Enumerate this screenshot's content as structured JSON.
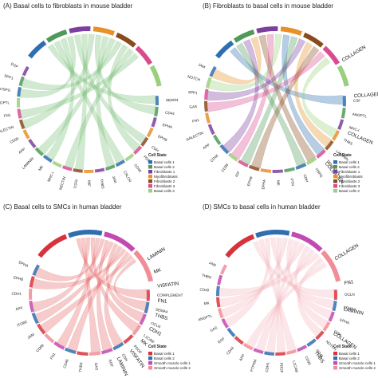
{
  "chart_data": [
    {
      "type": "chord",
      "panel": "(A)",
      "title": "Basal cells to fibroblasts in mouse bladder",
      "sectors": [
        {
          "label": "Basal cells 1",
          "color": "#2f6fb0"
        },
        {
          "label": "Basal cells 2",
          "color": "#4f9a5a"
        },
        {
          "label": "Fibroblasts 1",
          "color": "#7b3fa0"
        },
        {
          "label": "Myofibroblasts",
          "color": "#e8902a"
        },
        {
          "label": "Fibroblasts 2",
          "color": "#8a4a1c"
        },
        {
          "label": "Fibroblasts 3",
          "color": "#d94b8f"
        },
        {
          "label": "Basal cells 3",
          "color": "#9ad07c"
        }
      ],
      "genes": [
        "SEMA4",
        "CD44",
        "EPHA",
        "EPHB",
        "CDH",
        "PDGF",
        "CD46",
        "CALCR",
        "JAM",
        "THBS",
        "MIF",
        "TGFb",
        "NECTIN",
        "MHC-I",
        "MK",
        "LAMININ",
        "APP",
        "CD99",
        "GALECTIN",
        "FN1",
        "ANGPTL",
        "HSPG",
        "SPP1",
        "EGF"
      ],
      "big_labels": [],
      "legend": {
        "title": "Cell State",
        "items": [
          {
            "label": "Basal cells 1",
            "color": "#2f6fb0"
          },
          {
            "label": "Basal cells 2",
            "color": "#4f9a5a"
          },
          {
            "label": "Fibroblasts 1",
            "color": "#7b3fa0"
          },
          {
            "label": "Myofibroblasts",
            "color": "#e8902a"
          },
          {
            "label": "Fibroblasts 2",
            "color": "#8a4a1c"
          },
          {
            "label": "Fibroblasts 3",
            "color": "#d94b8f"
          },
          {
            "label": "Basal cells 3",
            "color": "#9ad07c"
          }
        ]
      },
      "link_color": "#7cc07a"
    },
    {
      "type": "chord",
      "panel": "(B)",
      "title": "Fibroblasts to basal cells in mouse bladder",
      "sectors": [
        {
          "label": "Basal cells 1",
          "color": "#2f6fb0"
        },
        {
          "label": "Basal cells 2",
          "color": "#4f9a5a"
        },
        {
          "label": "Fibroblasts 1",
          "color": "#7b3fa0"
        },
        {
          "label": "Myofibroblasts",
          "color": "#e8902a"
        },
        {
          "label": "Fibroblasts 2",
          "color": "#8a4a1c"
        },
        {
          "label": "Fibroblasts 3",
          "color": "#d94b8f"
        },
        {
          "label": "Basal cells 3",
          "color": "#9ad07c"
        }
      ],
      "genes": [
        "CSF",
        "ANGPTL",
        "MHC-I",
        "THBS",
        "LAMININ",
        "TENASCIN",
        "HSPG",
        "CDH",
        "PTN",
        "MK",
        "EPHA",
        "EPHB",
        "IGF",
        "CD99",
        "CD46",
        "APP",
        "GALECTIN",
        "FN1",
        "GAS",
        "SPP1",
        "NOTCH",
        "JAM"
      ],
      "big_labels": [
        "COLLAGEN",
        "COLLAGEN",
        "COLLAGEN",
        "COLLAGEN"
      ],
      "legend": {
        "title": "Cell State",
        "items": [
          {
            "label": "Basal cells 1",
            "color": "#2f6fb0"
          },
          {
            "label": "Basal cells 2",
            "color": "#4f9a5a"
          },
          {
            "label": "Fibroblasts 1",
            "color": "#7b3fa0"
          },
          {
            "label": "Myofibroblasts",
            "color": "#e8902a"
          },
          {
            "label": "Fibroblasts 2",
            "color": "#8a4a1c"
          },
          {
            "label": "Fibroblasts 3",
            "color": "#d94b8f"
          },
          {
            "label": "Basal cells 3",
            "color": "#9ad07c"
          }
        ]
      },
      "link_color": "#e7a65a"
    },
    {
      "type": "chord",
      "panel": "(C)",
      "title": "Basal cells to SMCs in human bladder",
      "sectors": [
        {
          "label": "Basal cells 1",
          "color": "#d8323c"
        },
        {
          "label": "Basal cells 2",
          "color": "#2f6fb0"
        },
        {
          "label": "Smooth muscle cells 1",
          "color": "#c24ab0"
        },
        {
          "label": "Smooth muscle cells 2",
          "color": "#f08d96"
        }
      ],
      "genes": [
        "COMPLEMENT",
        "SEMA4",
        "OCLN",
        "L1CAM",
        "PDGF",
        "CDH",
        "EGF",
        "GAS",
        "THBS",
        "CD46",
        "FN1",
        "CD99",
        "JAM",
        "ITGB2",
        "APP",
        "CDH1",
        "EPHB",
        "EPHA"
      ],
      "big_labels": [
        "LAMININ",
        "MK",
        "VISFATIN",
        "FN1",
        "THBS",
        "CDH1",
        "MK",
        "VISFATIN",
        "LAMININ"
      ],
      "legend": {
        "title": "Cell State",
        "items": [
          {
            "label": "Basal cells 1",
            "color": "#d8323c"
          },
          {
            "label": "Basal cells 2",
            "color": "#2f6fb0"
          },
          {
            "label": "Smooth muscle cells 1",
            "color": "#c24ab0"
          },
          {
            "label": "Smooth muscle cells 2",
            "color": "#f08d96"
          }
        ]
      },
      "link_color": "#e46a6a"
    },
    {
      "type": "chord",
      "panel": "(D)",
      "title": "SMCs to basal cells in human bladder",
      "sectors": [
        {
          "label": "Basal cells 1",
          "color": "#d8323c"
        },
        {
          "label": "Basal cells 2",
          "color": "#2f6fb0"
        },
        {
          "label": "Smooth muscle cells 1",
          "color": "#c24ab0"
        },
        {
          "label": "Smooth muscle cells 2",
          "color": "#f08d96"
        }
      ],
      "genes": [
        "OCLN",
        "SEMA4",
        "EPHA",
        "CDH",
        "NOTCH",
        "CD46",
        "CD99",
        "L1CAM",
        "PDGF",
        "CDH1",
        "PTPRM",
        "APP",
        "CD44",
        "EGF",
        "GAS",
        "ANGPTL",
        "MK",
        "CD40",
        "THBS",
        "JAM"
      ],
      "big_labels": [
        "COLLAGEN",
        "FN1",
        "LAMININ",
        "COLLAGEN",
        "THBS"
      ],
      "legend": {
        "title": "Cell State",
        "items": [
          {
            "label": "Basal cells 1",
            "color": "#d8323c"
          },
          {
            "label": "Basal cells 2",
            "color": "#2f6fb0"
          },
          {
            "label": "Smooth muscle cells 1",
            "color": "#c24ab0"
          },
          {
            "label": "Smooth muscle cells 2",
            "color": "#f08d96"
          }
        ]
      },
      "link_color": "#f4b7bf"
    }
  ]
}
